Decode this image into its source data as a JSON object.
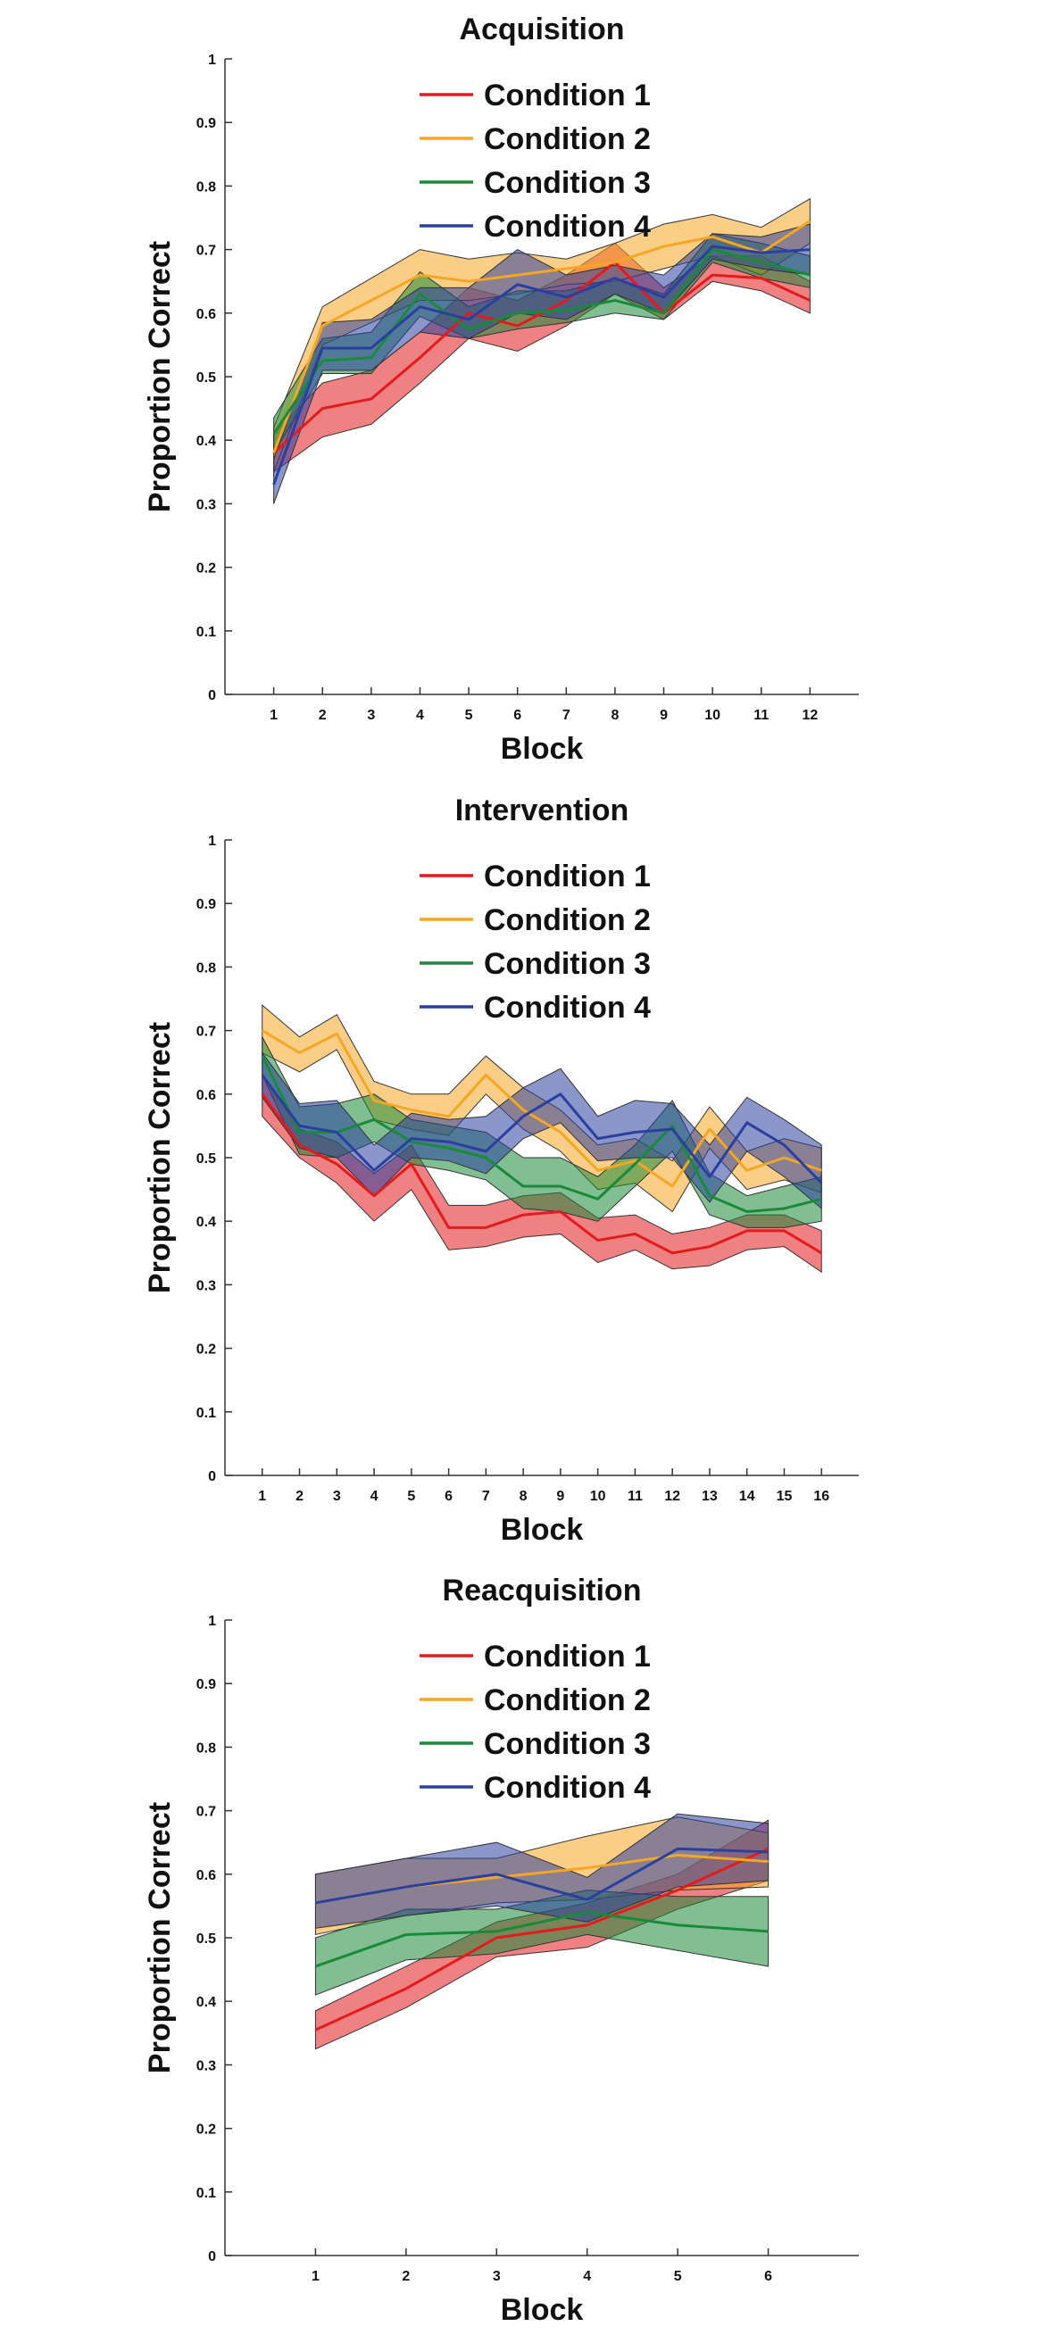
{
  "chart_data": [
    {
      "type": "line",
      "title": "Acquisition",
      "xlabel": "Block",
      "ylabel": "Proportion Correct",
      "x": [
        1,
        2,
        3,
        4,
        5,
        6,
        7,
        8,
        9,
        10,
        11,
        12
      ],
      "xlim": [
        0,
        13
      ],
      "ylim": [
        0,
        1
      ],
      "yticks": [
        0,
        0.1,
        0.2,
        0.3,
        0.4,
        0.5,
        0.6,
        0.7,
        0.8,
        0.9,
        1
      ],
      "legend_position": "top-center",
      "grid": false,
      "series": [
        {
          "name": "Condition 1",
          "color": "#e41a1c",
          "values": [
            0.38,
            0.45,
            0.465,
            0.53,
            0.6,
            0.58,
            0.62,
            0.68,
            0.6,
            0.66,
            0.655,
            0.62
          ],
          "upper": [
            0.41,
            0.49,
            0.51,
            0.57,
            0.64,
            0.62,
            0.66,
            0.71,
            0.64,
            0.69,
            0.69,
            0.65
          ],
          "lower": [
            0.35,
            0.405,
            0.425,
            0.49,
            0.56,
            0.54,
            0.58,
            0.63,
            0.59,
            0.65,
            0.635,
            0.6
          ]
        },
        {
          "name": "Condition 2",
          "color": "#f5a623",
          "values": [
            0.38,
            0.58,
            0.62,
            0.66,
            0.65,
            0.66,
            0.67,
            0.68,
            0.705,
            0.72,
            0.695,
            0.745
          ],
          "upper": [
            0.42,
            0.61,
            0.655,
            0.7,
            0.685,
            0.695,
            0.685,
            0.71,
            0.74,
            0.755,
            0.735,
            0.78
          ],
          "lower": [
            0.35,
            0.55,
            0.585,
            0.62,
            0.62,
            0.63,
            0.645,
            0.65,
            0.67,
            0.69,
            0.66,
            0.71
          ]
        },
        {
          "name": "Condition 3",
          "color": "#1a8a3a",
          "values": [
            0.41,
            0.525,
            0.53,
            0.63,
            0.575,
            0.6,
            0.605,
            0.62,
            0.6,
            0.7,
            0.68,
            0.66
          ],
          "upper": [
            0.435,
            0.56,
            0.57,
            0.665,
            0.61,
            0.635,
            0.635,
            0.655,
            0.63,
            0.725,
            0.71,
            0.69
          ],
          "lower": [
            0.38,
            0.505,
            0.505,
            0.595,
            0.56,
            0.575,
            0.585,
            0.6,
            0.59,
            0.68,
            0.655,
            0.64
          ]
        },
        {
          "name": "Condition 4",
          "color": "#2b3fa0",
          "values": [
            0.33,
            0.545,
            0.545,
            0.61,
            0.59,
            0.645,
            0.625,
            0.655,
            0.625,
            0.705,
            0.695,
            0.7
          ],
          "upper": [
            0.37,
            0.585,
            0.59,
            0.64,
            0.64,
            0.7,
            0.66,
            0.675,
            0.66,
            0.725,
            0.72,
            0.74
          ],
          "lower": [
            0.3,
            0.51,
            0.51,
            0.57,
            0.56,
            0.6,
            0.59,
            0.63,
            0.6,
            0.685,
            0.67,
            0.66
          ]
        }
      ]
    },
    {
      "type": "line",
      "title": "Intervention",
      "xlabel": "Block",
      "ylabel": "Proportion Correct",
      "x": [
        1,
        2,
        3,
        4,
        5,
        6,
        7,
        8,
        9,
        10,
        11,
        12,
        13,
        14,
        15,
        16
      ],
      "xlim": [
        0,
        17
      ],
      "ylim": [
        0,
        1
      ],
      "yticks": [
        0,
        0.1,
        0.2,
        0.3,
        0.4,
        0.5,
        0.6,
        0.7,
        0.8,
        0.9,
        1
      ],
      "legend_position": "top-center",
      "grid": false,
      "series": [
        {
          "name": "Condition 1",
          "color": "#e41a1c",
          "values": [
            0.6,
            0.52,
            0.49,
            0.44,
            0.49,
            0.39,
            0.39,
            0.41,
            0.415,
            0.37,
            0.38,
            0.35,
            0.36,
            0.385,
            0.385,
            0.35
          ],
          "upper": [
            0.63,
            0.545,
            0.525,
            0.475,
            0.52,
            0.425,
            0.425,
            0.44,
            0.445,
            0.405,
            0.41,
            0.38,
            0.39,
            0.41,
            0.41,
            0.385
          ],
          "lower": [
            0.565,
            0.5,
            0.46,
            0.4,
            0.45,
            0.355,
            0.36,
            0.375,
            0.38,
            0.335,
            0.355,
            0.325,
            0.33,
            0.355,
            0.36,
            0.32
          ]
        },
        {
          "name": "Condition 2",
          "color": "#f5a623",
          "values": [
            0.7,
            0.665,
            0.695,
            0.59,
            0.575,
            0.565,
            0.63,
            0.575,
            0.54,
            0.48,
            0.495,
            0.455,
            0.545,
            0.48,
            0.5,
            0.48
          ],
          "upper": [
            0.74,
            0.69,
            0.725,
            0.62,
            0.6,
            0.6,
            0.66,
            0.61,
            0.575,
            0.52,
            0.53,
            0.495,
            0.58,
            0.51,
            0.53,
            0.515
          ],
          "lower": [
            0.665,
            0.635,
            0.67,
            0.56,
            0.545,
            0.535,
            0.6,
            0.545,
            0.51,
            0.45,
            0.46,
            0.415,
            0.515,
            0.45,
            0.465,
            0.445
          ]
        },
        {
          "name": "Condition 3",
          "color": "#1a8a3a",
          "values": [
            0.66,
            0.54,
            0.54,
            0.56,
            0.525,
            0.515,
            0.5,
            0.455,
            0.455,
            0.435,
            0.49,
            0.55,
            0.44,
            0.415,
            0.42,
            0.435
          ],
          "upper": [
            0.69,
            0.58,
            0.585,
            0.6,
            0.56,
            0.55,
            0.54,
            0.5,
            0.5,
            0.47,
            0.52,
            0.59,
            0.475,
            0.44,
            0.455,
            0.47
          ],
          "lower": [
            0.63,
            0.505,
            0.5,
            0.525,
            0.49,
            0.48,
            0.465,
            0.42,
            0.415,
            0.4,
            0.455,
            0.51,
            0.41,
            0.39,
            0.39,
            0.4
          ]
        },
        {
          "name": "Condition 4",
          "color": "#2b3fa0",
          "values": [
            0.63,
            0.55,
            0.54,
            0.48,
            0.53,
            0.525,
            0.51,
            0.565,
            0.6,
            0.53,
            0.54,
            0.545,
            0.47,
            0.555,
            0.52,
            0.46
          ],
          "upper": [
            0.665,
            0.585,
            0.59,
            0.52,
            0.57,
            0.56,
            0.565,
            0.61,
            0.64,
            0.565,
            0.59,
            0.585,
            0.52,
            0.595,
            0.56,
            0.52
          ],
          "lower": [
            0.595,
            0.515,
            0.5,
            0.44,
            0.5,
            0.495,
            0.475,
            0.53,
            0.555,
            0.495,
            0.5,
            0.5,
            0.43,
            0.51,
            0.47,
            0.42
          ]
        }
      ]
    },
    {
      "type": "line",
      "title": "Reacquisition",
      "xlabel": "Block",
      "ylabel": "Proportion Correct",
      "x": [
        1,
        2,
        3,
        4,
        5,
        6
      ],
      "xlim": [
        0,
        7
      ],
      "ylim": [
        0,
        1
      ],
      "yticks": [
        0,
        0.1,
        0.2,
        0.3,
        0.4,
        0.5,
        0.6,
        0.7,
        0.8,
        0.9,
        1
      ],
      "legend_position": "top-center",
      "grid": false,
      "series": [
        {
          "name": "Condition 1",
          "color": "#e41a1c",
          "values": [
            0.355,
            0.42,
            0.5,
            0.52,
            0.575,
            0.64
          ],
          "upper": [
            0.385,
            0.455,
            0.525,
            0.555,
            0.6,
            0.685
          ],
          "lower": [
            0.325,
            0.39,
            0.47,
            0.485,
            0.545,
            0.59
          ]
        },
        {
          "name": "Condition 2",
          "color": "#f5a623",
          "values": [
            0.555,
            0.58,
            0.595,
            0.61,
            0.63,
            0.62
          ],
          "upper": [
            0.6,
            0.625,
            0.625,
            0.66,
            0.69,
            0.665
          ],
          "lower": [
            0.505,
            0.535,
            0.555,
            0.56,
            0.575,
            0.58
          ]
        },
        {
          "name": "Condition 3",
          "color": "#1a8a3a",
          "values": [
            0.455,
            0.505,
            0.51,
            0.54,
            0.52,
            0.51
          ],
          "upper": [
            0.5,
            0.545,
            0.545,
            0.575,
            0.565,
            0.565
          ],
          "lower": [
            0.41,
            0.465,
            0.475,
            0.505,
            0.48,
            0.455
          ]
        },
        {
          "name": "Condition 4",
          "color": "#2b3fa0",
          "values": [
            0.555,
            0.58,
            0.6,
            0.56,
            0.64,
            0.635
          ],
          "upper": [
            0.6,
            0.625,
            0.65,
            0.595,
            0.695,
            0.68
          ],
          "lower": [
            0.515,
            0.535,
            0.55,
            0.525,
            0.58,
            0.59
          ]
        }
      ]
    }
  ]
}
